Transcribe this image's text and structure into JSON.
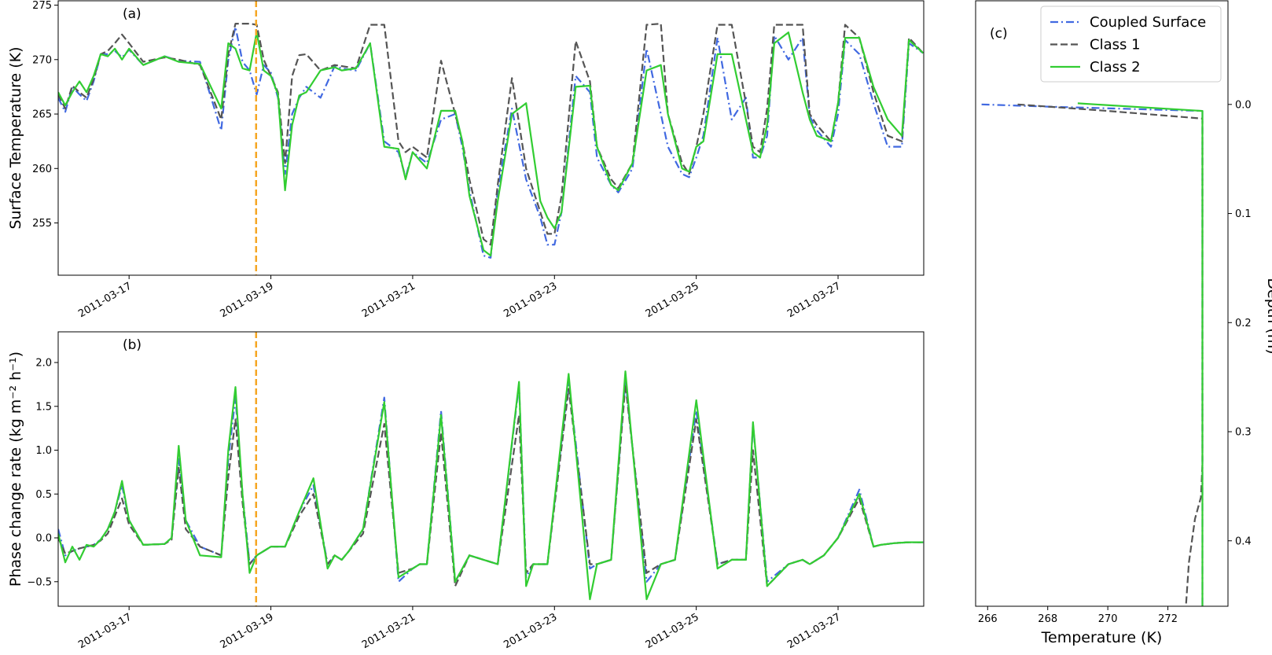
{
  "chart_data": [
    {
      "panel": "(a)",
      "type": "line",
      "ylabel": "Surface Temperature (K)",
      "xlabel": "",
      "x_start": "2011-03-16T00:00",
      "x_end": "2011-03-28T05:00",
      "x_tick_labels": [
        "2011-03-17",
        "2011-03-19",
        "2011-03-21",
        "2011-03-23",
        "2011-03-25",
        "2011-03-27"
      ],
      "ylim": [
        250.2,
        275.4
      ],
      "y_ticks": [
        255,
        260,
        265,
        270,
        275
      ],
      "grid": false,
      "vline": {
        "x": "2011-03-18T19:00",
        "color": "#f5a623",
        "style": "dashed"
      },
      "x_days": [
        0.0,
        0.1,
        0.2,
        0.3,
        0.4,
        0.5,
        0.6,
        0.7,
        0.8,
        0.9,
        1.0,
        1.2,
        1.5,
        1.7,
        2.0,
        2.3,
        2.4,
        2.5,
        2.6,
        2.7,
        2.8,
        2.9,
        3.0,
        3.1,
        3.2,
        3.3,
        3.4,
        3.5,
        3.7,
        3.9,
        4.0,
        4.2,
        4.4,
        4.6,
        4.8,
        4.9,
        5.0,
        5.2,
        5.4,
        5.6,
        5.7,
        5.8,
        6.0,
        6.1,
        6.2,
        6.4,
        6.6,
        6.8,
        6.9,
        7.0,
        7.1,
        7.3,
        7.5,
        7.6,
        7.8,
        7.9,
        8.1,
        8.3,
        8.5,
        8.6,
        8.8,
        8.9,
        9.0,
        9.1,
        9.3,
        9.5,
        9.7,
        9.8,
        9.9,
        10.0,
        10.1,
        10.3,
        10.5,
        10.6,
        10.7,
        10.9,
        11.0,
        11.1,
        11.3,
        11.5,
        11.7,
        11.9,
        12.0,
        12.2
      ],
      "series": [
        {
          "name": "Coupled Surface",
          "color": "#4169e1",
          "style": "dashdot",
          "values": [
            266.5,
            265.2,
            267.5,
            266.8,
            266.2,
            268.0,
            270.5,
            270.5,
            270.8,
            270.2,
            270.9,
            269.5,
            270.3,
            269.9,
            269.8,
            263.5,
            270.0,
            273.0,
            269.8,
            269.0,
            266.8,
            269.5,
            268.8,
            266.5,
            259.5,
            265.0,
            266.5,
            267.5,
            266.5,
            269.4,
            269.2,
            269.0,
            271.5,
            262.5,
            261.5,
            259.2,
            261.5,
            260.5,
            264.5,
            265.0,
            262.0,
            258.0,
            252.0,
            251.8,
            258.0,
            265.5,
            259.0,
            255.5,
            253.0,
            253.0,
            256.0,
            268.5,
            267.0,
            261.0,
            258.5,
            257.8,
            260.0,
            271.0,
            265.0,
            262.0,
            259.5,
            259.2,
            261.0,
            263.0,
            272.0,
            264.5,
            266.5,
            261.0,
            261.0,
            263.0,
            272.2,
            270.0,
            272.0,
            264.8,
            263.5,
            262.0,
            265.0,
            271.8,
            270.5,
            266.0,
            262.0,
            262.0,
            271.5,
            270.6
          ]
        },
        {
          "name": "Class 1",
          "color": "#555555",
          "style": "dashed",
          "values": [
            266.8,
            265.5,
            267.6,
            267.0,
            266.5,
            268.2,
            270.5,
            270.8,
            271.5,
            272.3,
            271.5,
            269.8,
            270.2,
            270.0,
            269.5,
            264.5,
            270.5,
            273.3,
            273.3,
            273.3,
            273.2,
            270.0,
            268.5,
            267.0,
            260.5,
            268.5,
            270.4,
            270.5,
            269.0,
            269.5,
            269.4,
            269.2,
            273.2,
            273.2,
            262.5,
            261.5,
            262.0,
            261.0,
            269.9,
            265.0,
            262.5,
            259.0,
            253.5,
            253.0,
            258.5,
            268.3,
            260.0,
            256.0,
            254.0,
            254.0,
            257.5,
            271.7,
            268.0,
            262.0,
            259.0,
            258.2,
            260.5,
            273.2,
            273.3,
            265.0,
            260.5,
            259.5,
            262.0,
            265.0,
            273.2,
            273.2,
            266.0,
            262.0,
            261.5,
            265.5,
            273.2,
            273.2,
            273.2,
            265.0,
            264.0,
            262.5,
            266.0,
            273.2,
            272.0,
            267.0,
            263.0,
            262.5,
            272.0,
            270.6
          ]
        },
        {
          "name": "Class 2",
          "color": "#32cd32",
          "style": "solid",
          "values": [
            267.0,
            265.8,
            267.0,
            268.0,
            267.0,
            268.5,
            270.5,
            270.3,
            271.0,
            270.0,
            271.0,
            269.5,
            270.3,
            269.8,
            269.6,
            265.5,
            271.5,
            271.0,
            269.2,
            269.0,
            272.5,
            269.0,
            268.5,
            266.8,
            258.0,
            264.0,
            266.7,
            267.0,
            269.0,
            269.3,
            269.0,
            269.2,
            271.5,
            262.0,
            261.8,
            259.0,
            261.5,
            260.0,
            265.3,
            265.3,
            262.5,
            257.5,
            252.5,
            252.0,
            257.0,
            265.0,
            266.0,
            257.0,
            255.5,
            254.5,
            256.0,
            267.5,
            267.6,
            262.0,
            258.5,
            258.0,
            260.5,
            269.0,
            269.5,
            265.0,
            260.0,
            259.7,
            262.0,
            262.5,
            270.5,
            270.5,
            264.5,
            261.5,
            261.0,
            264.0,
            271.5,
            272.5,
            267.0,
            264.5,
            263.0,
            262.5,
            266.0,
            272.0,
            272.0,
            267.5,
            264.5,
            263.0,
            271.8,
            270.6
          ]
        }
      ]
    },
    {
      "panel": "(b)",
      "type": "line",
      "ylabel": "Phase change rate (kg m⁻² h⁻¹)",
      "xlabel": "",
      "x_start": "2011-03-16T00:00",
      "x_end": "2011-03-28T05:00",
      "x_tick_labels": [
        "2011-03-17",
        "2011-03-19",
        "2011-03-21",
        "2011-03-23",
        "2011-03-25",
        "2011-03-27"
      ],
      "ylim": [
        -0.78,
        2.35
      ],
      "y_ticks": [
        -0.5,
        0.0,
        0.5,
        1.0,
        1.5,
        2.0
      ],
      "y_tick_labels": [
        "−0.5",
        "0.0",
        "0.5",
        "1.0",
        "1.5",
        "2.0"
      ],
      "grid": false,
      "vline": {
        "x": "2011-03-18T19:00",
        "color": "#f5a623",
        "style": "dashed"
      },
      "x_days": [
        0.0,
        0.1,
        0.2,
        0.3,
        0.4,
        0.5,
        0.6,
        0.7,
        0.8,
        0.9,
        1.0,
        1.2,
        1.5,
        1.6,
        1.7,
        1.8,
        2.0,
        2.3,
        2.4,
        2.5,
        2.6,
        2.7,
        2.8,
        2.9,
        3.0,
        3.1,
        3.2,
        3.4,
        3.6,
        3.8,
        3.9,
        4.0,
        4.1,
        4.3,
        4.6,
        4.8,
        5.0,
        5.1,
        5.2,
        5.4,
        5.6,
        5.8,
        6.0,
        6.2,
        6.5,
        6.6,
        6.7,
        6.9,
        7.2,
        7.5,
        7.6,
        7.8,
        8.0,
        8.3,
        8.5,
        8.7,
        9.0,
        9.3,
        9.5,
        9.7,
        9.8,
        10.0,
        10.3,
        10.5,
        10.6,
        10.7,
        10.8,
        11.0,
        11.3,
        11.5,
        11.6,
        11.7,
        11.8,
        12.0,
        12.2
      ],
      "series": [
        {
          "name": "Coupled Surface",
          "color": "#4169e1",
          "style": "dashdot",
          "values": [
            0.1,
            -0.2,
            -0.15,
            -0.12,
            -0.1,
            -0.08,
            -0.02,
            0.1,
            0.3,
            0.6,
            0.2,
            -0.08,
            -0.07,
            0.0,
            0.9,
            0.2,
            -0.1,
            -0.2,
            0.9,
            1.6,
            0.5,
            -0.3,
            -0.2,
            -0.15,
            -0.1,
            -0.1,
            -0.1,
            0.3,
            0.6,
            -0.3,
            -0.2,
            -0.25,
            -0.15,
            0.1,
            1.6,
            -0.5,
            -0.35,
            -0.3,
            -0.3,
            1.45,
            -0.5,
            -0.2,
            -0.25,
            -0.3,
            1.75,
            -0.45,
            -0.3,
            -0.3,
            1.8,
            -0.35,
            -0.3,
            -0.25,
            1.8,
            -0.5,
            -0.3,
            -0.25,
            1.45,
            -0.3,
            -0.25,
            -0.25,
            1.3,
            -0.5,
            -0.3,
            -0.25,
            -0.3,
            -0.25,
            -0.2,
            0.0,
            0.55,
            -0.1,
            -0.08,
            -0.07,
            -0.06,
            -0.05,
            -0.05
          ]
        },
        {
          "name": "Class 1",
          "color": "#555555",
          "style": "dashed",
          "values": [
            0.0,
            -0.18,
            -0.15,
            -0.12,
            -0.1,
            -0.08,
            -0.03,
            0.05,
            0.25,
            0.45,
            0.15,
            -0.08,
            -0.07,
            -0.02,
            0.8,
            0.1,
            -0.1,
            -0.2,
            0.7,
            1.35,
            0.4,
            -0.3,
            -0.2,
            -0.15,
            -0.1,
            -0.1,
            -0.1,
            0.25,
            0.5,
            -0.3,
            -0.2,
            -0.25,
            -0.15,
            0.05,
            1.3,
            -0.4,
            -0.35,
            -0.3,
            -0.3,
            1.2,
            -0.55,
            -0.2,
            -0.25,
            -0.3,
            1.4,
            -0.4,
            -0.3,
            -0.3,
            1.7,
            -0.3,
            -0.3,
            -0.25,
            1.75,
            -0.4,
            -0.3,
            -0.25,
            1.35,
            -0.3,
            -0.25,
            -0.25,
            1.0,
            -0.55,
            -0.3,
            -0.25,
            -0.3,
            -0.25,
            -0.2,
            0.0,
            0.45,
            -0.1,
            -0.08,
            -0.07,
            -0.06,
            -0.05,
            -0.05
          ]
        },
        {
          "name": "Class 2",
          "color": "#32cd32",
          "style": "solid",
          "values": [
            0.05,
            -0.28,
            -0.1,
            -0.25,
            -0.08,
            -0.1,
            -0.02,
            0.1,
            0.3,
            0.65,
            0.2,
            -0.08,
            -0.07,
            0.0,
            1.05,
            0.2,
            -0.2,
            -0.22,
            1.0,
            1.72,
            0.5,
            -0.4,
            -0.2,
            -0.15,
            -0.1,
            -0.1,
            -0.1,
            0.3,
            0.68,
            -0.35,
            -0.2,
            -0.25,
            -0.15,
            0.1,
            1.55,
            -0.45,
            -0.35,
            -0.3,
            -0.3,
            1.4,
            -0.5,
            -0.2,
            -0.25,
            -0.3,
            1.78,
            -0.55,
            -0.3,
            -0.3,
            1.87,
            -0.7,
            -0.3,
            -0.25,
            1.9,
            -0.7,
            -0.3,
            -0.25,
            1.57,
            -0.35,
            -0.25,
            -0.25,
            1.32,
            -0.55,
            -0.3,
            -0.25,
            -0.3,
            -0.25,
            -0.2,
            0.0,
            0.5,
            -0.1,
            -0.08,
            -0.07,
            -0.06,
            -0.05,
            -0.05
          ]
        }
      ]
    },
    {
      "panel": "(c)",
      "type": "line",
      "xlabel": "Temperature (K)",
      "ylabel": "Depth (m)",
      "xlim": [
        265.6,
        274.0
      ],
      "x_ticks": [
        266,
        268,
        270,
        272
      ],
      "ylim_inverted": [
        -0.095,
        0.46
      ],
      "y_ticks": [
        0.0,
        0.1,
        0.2,
        0.3,
        0.4
      ],
      "y_axis_side": "right",
      "grid": false,
      "legend": {
        "placement": "top-right",
        "entries": [
          "Coupled Surface",
          "Class 1",
          "Class 2"
        ]
      },
      "series": [
        {
          "name": "Coupled Surface",
          "color": "#4169e1",
          "style": "dashdot",
          "temperature": [
            265.8,
            268.0,
            273.15,
            273.15,
            273.15
          ],
          "depth": [
            0.0,
            0.002,
            0.006,
            0.2,
            0.46
          ]
        },
        {
          "name": "Class 1",
          "color": "#555555",
          "style": "dashed",
          "temperature": [
            267.0,
            270.0,
            273.15,
            273.15,
            273.1,
            272.9,
            272.7,
            272.6
          ],
          "depth": [
            0.0,
            0.006,
            0.013,
            0.33,
            0.36,
            0.38,
            0.42,
            0.46
          ]
        },
        {
          "name": "Class 2",
          "color": "#32cd32",
          "style": "solid",
          "temperature": [
            269.0,
            273.15,
            273.15,
            273.15
          ],
          "depth": [
            -0.001,
            0.006,
            0.2,
            0.46
          ]
        }
      ]
    }
  ]
}
